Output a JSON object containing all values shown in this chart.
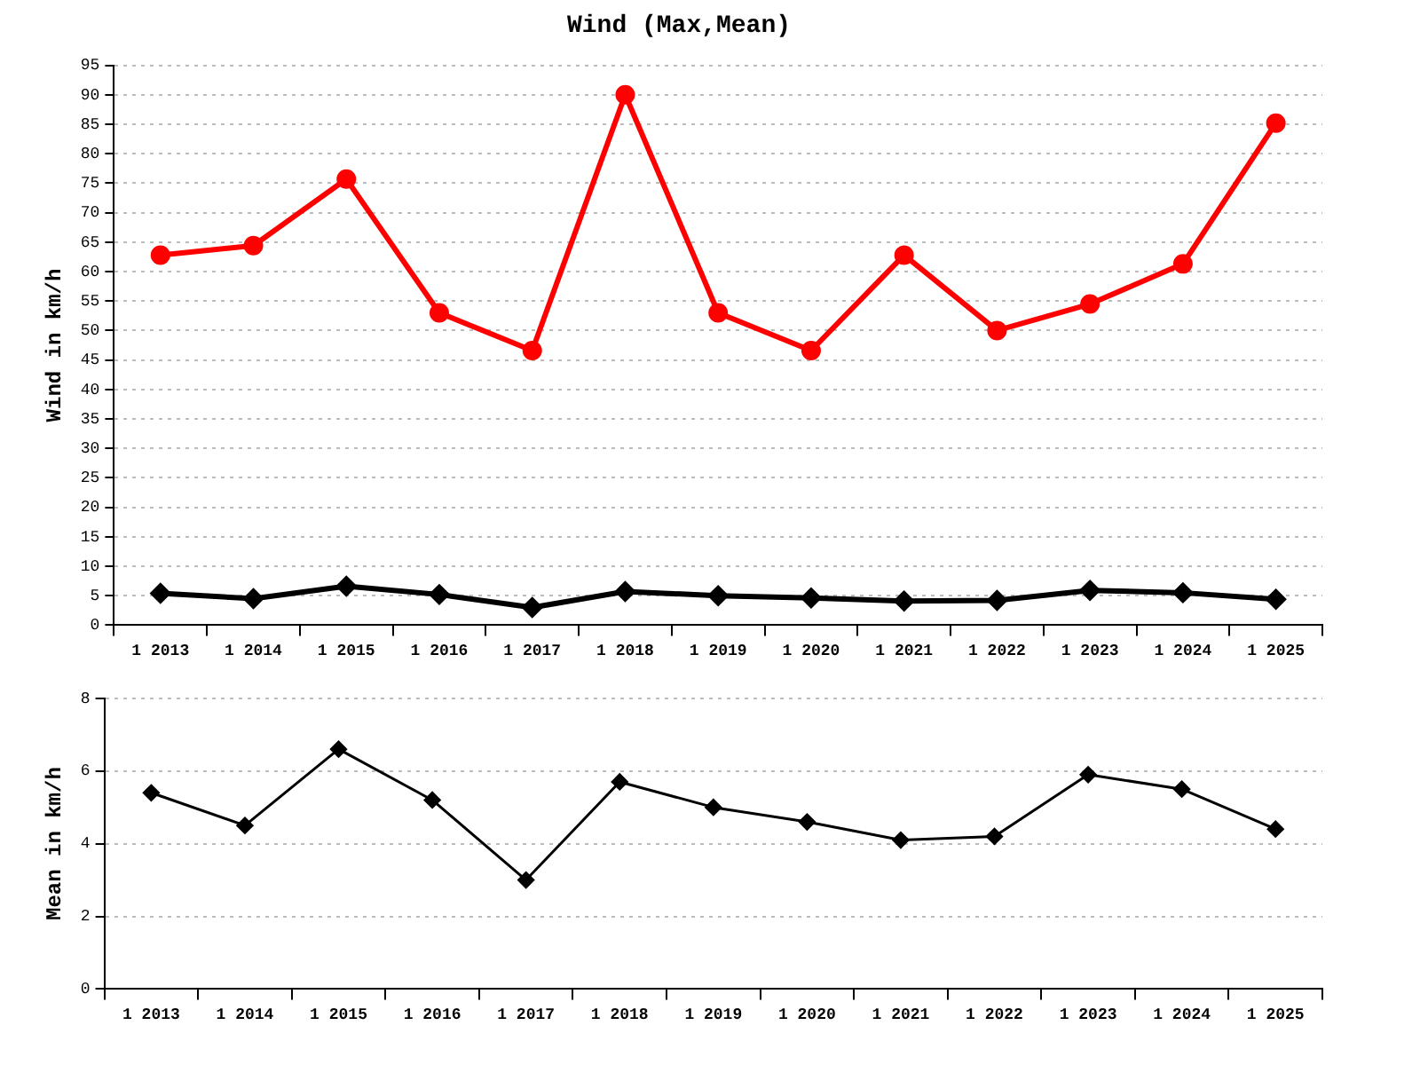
{
  "chart_data": [
    {
      "type": "line",
      "title": "Wind (Max,Mean)",
      "ylabel": "Wind in km/h",
      "categories": [
        "1 2013",
        "1 2014",
        "1 2015",
        "1 2016",
        "1 2017",
        "1 2018",
        "1 2019",
        "1 2020",
        "1 2021",
        "1 2022",
        "1 2023",
        "1 2024",
        "1 2025"
      ],
      "ylim": [
        0,
        95
      ],
      "yticks": [
        0,
        5,
        10,
        15,
        20,
        25,
        30,
        35,
        40,
        45,
        50,
        55,
        60,
        65,
        70,
        75,
        80,
        85,
        90,
        95
      ],
      "grid": "y",
      "legend": false,
      "series": [
        {
          "color": "#ff0000",
          "marker": "circle",
          "values": [
            62.8,
            64.4,
            75.7,
            53.0,
            46.6,
            90.0,
            53.0,
            46.6,
            62.8,
            50.0,
            54.5,
            61.3,
            85.2
          ]
        },
        {
          "color": "#000000",
          "marker": "diamond",
          "values": [
            5.4,
            4.5,
            6.6,
            5.2,
            3.0,
            5.7,
            5.0,
            4.6,
            4.1,
            4.2,
            5.9,
            5.5,
            4.4
          ]
        }
      ]
    },
    {
      "type": "line",
      "ylabel": "Mean in km/h",
      "categories": [
        "1 2013",
        "1 2014",
        "1 2015",
        "1 2016",
        "1 2017",
        "1 2018",
        "1 2019",
        "1 2020",
        "1 2021",
        "1 2022",
        "1 2023",
        "1 2024",
        "1 2025"
      ],
      "ylim": [
        0,
        8
      ],
      "yticks": [
        0,
        2,
        4,
        6,
        8
      ],
      "grid": "y",
      "legend": false,
      "series": [
        {
          "color": "#000000",
          "marker": "diamond",
          "values": [
            5.4,
            4.5,
            6.6,
            5.2,
            3.0,
            5.7,
            5.0,
            4.6,
            4.1,
            4.2,
            5.9,
            5.5,
            4.4
          ]
        }
      ]
    }
  ]
}
